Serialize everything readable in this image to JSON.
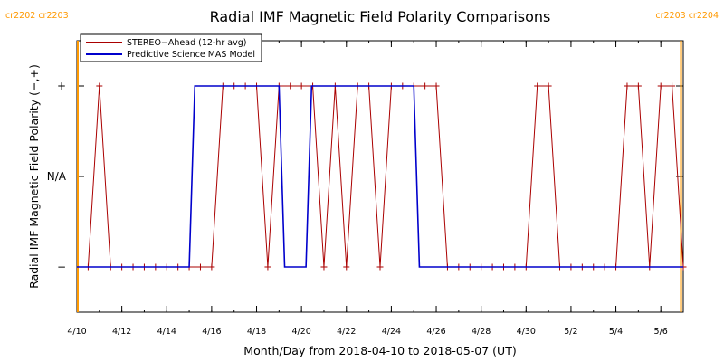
{
  "chart_data": {
    "type": "line",
    "title": "Radial IMF Magnetic Field Polarity Comparisons",
    "xlabel": "Month/Day from 2018-04-10 to 2018-05-07 (UT)",
    "ylabel": "Radial IMF Magnetic Field Polarity (−,+)",
    "x_unit": "days",
    "xlim": [
      0,
      27
    ],
    "ylim": [
      -1.5,
      1.5
    ],
    "y_ticks": [
      {
        "value": 1,
        "label": "+"
      },
      {
        "value": 0,
        "label": "N/A"
      },
      {
        "value": -1,
        "label": "−"
      }
    ],
    "x_ticks": [
      {
        "value": 0,
        "label": "4/10"
      },
      {
        "value": 2,
        "label": "4/12"
      },
      {
        "value": 4,
        "label": "4/14"
      },
      {
        "value": 6,
        "label": "4/16"
      },
      {
        "value": 8,
        "label": "4/18"
      },
      {
        "value": 10,
        "label": "4/20"
      },
      {
        "value": 12,
        "label": "4/22"
      },
      {
        "value": 14,
        "label": "4/24"
      },
      {
        "value": 16,
        "label": "4/26"
      },
      {
        "value": 18,
        "label": "4/28"
      },
      {
        "value": 20,
        "label": "4/30"
      },
      {
        "value": 22,
        "label": "5/2"
      },
      {
        "value": 24,
        "label": "5/4"
      },
      {
        "value": 26,
        "label": "5/6"
      }
    ],
    "carrington_markers": [
      {
        "x": 0.04,
        "labels": [
          "cr2202",
          "cr2203"
        ]
      },
      {
        "x": 26.9,
        "labels": [
          "cr2203",
          "cr2204"
        ]
      }
    ],
    "marker_color": "#ff9900",
    "legend_position": "top-left",
    "series": [
      {
        "name": "STEREO−Ahead (12-hr avg)",
        "color": "#aa0000",
        "marker": "+",
        "x": [
          0.5,
          1.0,
          1.5,
          2.0,
          2.5,
          3.0,
          3.5,
          4.0,
          4.5,
          5.0,
          5.5,
          6.0,
          6.5,
          7.0,
          7.5,
          8.0,
          8.5,
          9.0,
          9.5,
          10.0,
          10.5,
          11.0,
          11.5,
          12.0,
          12.5,
          13.0,
          13.5,
          14.0,
          14.5,
          15.0,
          15.5,
          16.0,
          16.5,
          17.0,
          17.5,
          18.0,
          18.5,
          19.0,
          19.5,
          20.0,
          20.5,
          21.0,
          21.5,
          22.0,
          22.5,
          23.0,
          23.5,
          24.0,
          24.5,
          25.0,
          25.5,
          26.0,
          26.5,
          27.0
        ],
        "y": [
          -1,
          1,
          -1,
          -1,
          -1,
          -1,
          -1,
          -1,
          -1,
          -1,
          -1,
          -1,
          1,
          1,
          1,
          1,
          -1,
          1,
          1,
          1,
          1,
          -1,
          1,
          -1,
          1,
          1,
          -1,
          1,
          1,
          1,
          1,
          1,
          -1,
          -1,
          -1,
          -1,
          -1,
          -1,
          -1,
          -1,
          1,
          1,
          -1,
          -1,
          -1,
          -1,
          -1,
          -1,
          1,
          1,
          -1,
          1,
          1,
          -1
        ]
      },
      {
        "name": "Predictive Science MAS Model",
        "color": "#0000cc",
        "marker": "none",
        "x": [
          0.0,
          5.0,
          5.25,
          9.0,
          9.25,
          10.2,
          10.45,
          15.0,
          15.25,
          27.0
        ],
        "y": [
          -1,
          -1,
          1,
          1,
          -1,
          -1,
          1,
          1,
          -1,
          -1
        ]
      }
    ]
  }
}
